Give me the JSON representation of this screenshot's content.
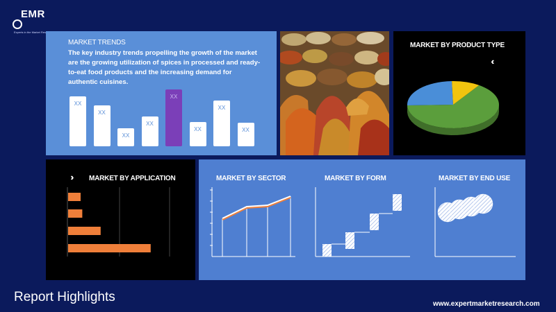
{
  "logo": {
    "text": "EMR",
    "tagline": "Experts in the Market Research"
  },
  "trends": {
    "title": "MARKET TRENDS",
    "description": "The key industry trends propelling the growth of the market are the growing utilization of spices in processed and ready-to-eat food products and the increasing demand for authentic cuisines.",
    "bars": [
      {
        "label": "XX",
        "value": 0.88,
        "highlight": false
      },
      {
        "label": "XX",
        "value": 0.72,
        "highlight": false
      },
      {
        "label": "XX",
        "value": 0.32,
        "highlight": false
      },
      {
        "label": "XX",
        "value": 0.52,
        "highlight": false
      },
      {
        "label": "XX",
        "value": 1.0,
        "highlight": true
      },
      {
        "label": "XX",
        "value": 0.43,
        "highlight": false
      },
      {
        "label": "XX",
        "value": 0.81,
        "highlight": false
      },
      {
        "label": "XX",
        "value": 0.41,
        "highlight": false
      }
    ],
    "bar_color": "#ffffff",
    "highlight_color": "#7b3fb8"
  },
  "product_type": {
    "title": "MARKET BY PRODUCT TYPE",
    "icon": "double-chevron-left-icon",
    "slices": [
      {
        "value": 65,
        "color": "#5b9e3c"
      },
      {
        "value": 25,
        "color": "#4a8ed8"
      },
      {
        "value": 10,
        "color": "#f2c40f"
      }
    ]
  },
  "application": {
    "title": "MARKET BY APPLICATION",
    "icon": "double-chevron-right-icon",
    "bars": [
      0.15,
      0.17,
      0.39,
      0.99
    ],
    "bar_color": "#ef7f3a"
  },
  "sector": {
    "title": "MARKET BY SECTOR",
    "points": [
      0.55,
      0.72,
      0.74,
      0.87
    ]
  },
  "form": {
    "title": "MARKET BY FORM",
    "steps": [
      0.1,
      0.35,
      0.62,
      0.9
    ]
  },
  "end_use": {
    "title": "MARKET BY END USE",
    "bubbles": 4
  },
  "footer": {
    "report_title": "Report Highlights",
    "website": "www.expertmarketresearch.com"
  }
}
